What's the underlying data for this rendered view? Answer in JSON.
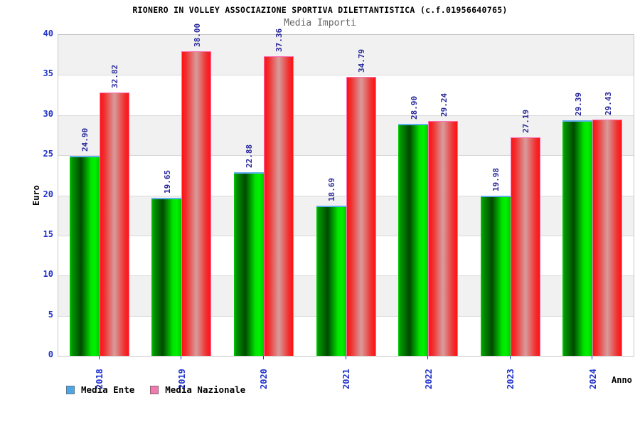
{
  "chart_data": {
    "type": "bar",
    "title": "RIONERO IN VOLLEY ASSOCIAZIONE SPORTIVA DILETTANTISTICA (c.f.01956640765)",
    "subtitle": "Media Importi",
    "xlabel": "Anno",
    "ylabel": "Euro",
    "ylim": [
      0,
      40
    ],
    "ytick_step": 5,
    "yticks": [
      0,
      5,
      10,
      15,
      20,
      25,
      30,
      35,
      40
    ],
    "grid": "horizontal-bands-on",
    "legend_position": "bottom-left",
    "categories": [
      "2018",
      "2019",
      "2020",
      "2021",
      "2022",
      "2023",
      "2024"
    ],
    "series": [
      {
        "name": "Media Ente",
        "slug": "media-ente",
        "legend_color": "#4da6e8",
        "legend_border": "#5a788c",
        "bar_style": "green-gradient",
        "values": [
          24.9,
          19.65,
          22.88,
          18.69,
          28.9,
          19.98,
          29.39
        ]
      },
      {
        "name": "Media Nazionale",
        "slug": "media-nazionale",
        "legend_color": "#f07ab0",
        "legend_border": "#8c6070",
        "bar_style": "red-gradient",
        "values": [
          32.82,
          38.0,
          37.36,
          34.79,
          29.24,
          27.19,
          29.43
        ]
      }
    ],
    "value_label_format": "2-decimals",
    "colors": {
      "value_label": "#28289b",
      "tick_label": "#2334cc",
      "band": "#f1f1f1",
      "gridline": "#d9d9d9",
      "plot_border": "#c8c8c8",
      "title": "#000000",
      "subtitle": "#666666"
    }
  }
}
